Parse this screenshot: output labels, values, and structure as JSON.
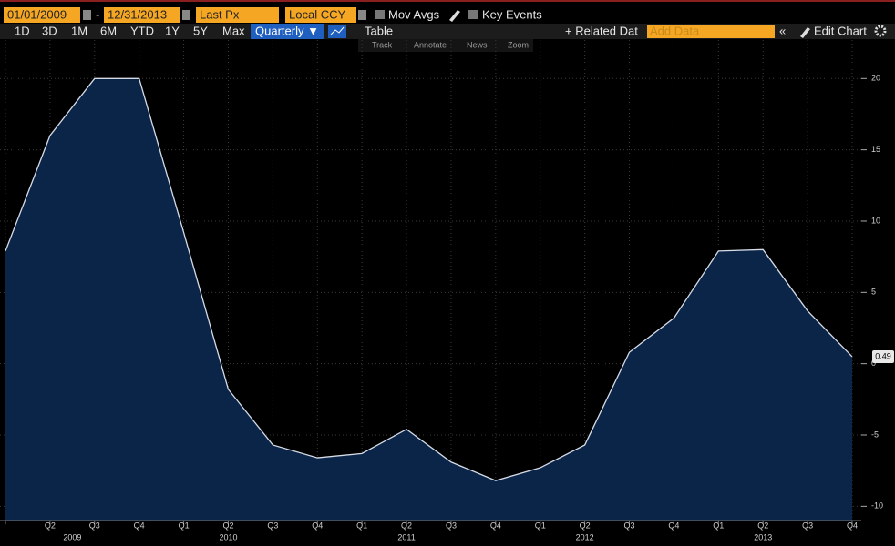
{
  "toolbar": {
    "start_date": "01/01/2009",
    "date_separator": "-",
    "end_date": "12/31/2013",
    "field": "Last Px",
    "currency": "Local CCY",
    "mov_avgs": "Mov Avgs",
    "key_events": "Key Events",
    "periods": [
      "1D",
      "3D",
      "1M",
      "6M",
      "YTD",
      "1Y",
      "5Y",
      "Max"
    ],
    "frequency": "Quarterly ▼",
    "table": "Table",
    "related_data": "+ Related Dat",
    "add_data": "Add Data",
    "edit_chart": "Edit Chart",
    "tools": [
      "Track",
      "Annotate",
      "News",
      "Zoom"
    ]
  },
  "chart_data": {
    "type": "area",
    "categories": [
      null,
      "Q2",
      "Q3",
      "Q4",
      "Q1",
      "Q2",
      "Q3",
      "Q4",
      "Q1",
      "Q2",
      "Q3",
      "Q4",
      "Q1",
      "Q2",
      "Q3",
      "Q4",
      "Q1",
      "Q2",
      "Q3",
      "Q4"
    ],
    "years": [
      "2009",
      "2010",
      "2011",
      "2012",
      "2013"
    ],
    "values": [
      7.9,
      16.0,
      20.0,
      20.0,
      9.2,
      -1.8,
      -5.7,
      -6.6,
      -6.3,
      -4.6,
      -6.9,
      -8.2,
      -7.3,
      -5.7,
      0.8,
      3.2,
      7.9,
      8.0,
      3.7,
      0.49
    ],
    "color": "#d6dbe6",
    "fill_color": "#0b2548",
    "ylim": [
      -11,
      22.7
    ],
    "yticks": [
      -10,
      -5,
      0,
      5,
      10,
      15,
      20
    ],
    "grid": true
  }
}
